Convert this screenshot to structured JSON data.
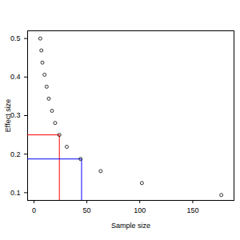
{
  "chart_data": {
    "type": "scatter",
    "x_label": "Sample size",
    "y_label": "Effect size",
    "x": [
      6,
      7,
      8,
      10,
      12,
      14,
      17,
      20,
      24,
      31,
      44,
      63,
      102,
      177
    ],
    "values": [
      0.5,
      0.469,
      0.4375,
      0.406,
      0.375,
      0.344,
      0.3125,
      0.281,
      0.25,
      0.219,
      0.1875,
      0.156,
      0.125,
      0.094
    ],
    "color": "black",
    "marker": "circle",
    "xlim": [
      -6,
      189
    ],
    "ylim": [
      0.08,
      0.52
    ],
    "xticks": [
      0,
      50,
      100,
      150
    ],
    "yticks": [
      0.1,
      0.2,
      0.3,
      0.4,
      0.5
    ],
    "grid": false,
    "reference_lines": [
      {
        "x": 24,
        "y": 0.25,
        "color": "red"
      },
      {
        "x": 45,
        "y": 0.1875,
        "color": "blue"
      }
    ]
  }
}
